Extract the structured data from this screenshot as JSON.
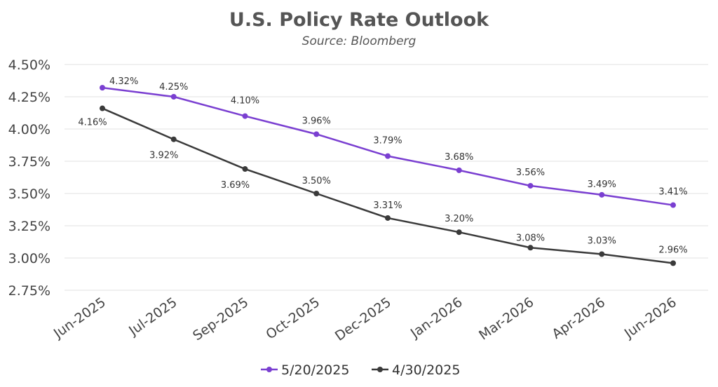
{
  "chart_data": {
    "type": "line",
    "title": "U.S. Policy Rate Outlook",
    "subtitle": "Source: Bloomberg",
    "xlabel": "",
    "ylabel": "",
    "categories": [
      "Jun-2025",
      "Jul-2025",
      "Sep-2025",
      "Oct-2025",
      "Dec-2025",
      "Jan-2026",
      "Mar-2026",
      "Apr-2026",
      "Jun-2026"
    ],
    "ylim": [
      2.75,
      4.5
    ],
    "yticks": [
      "4.50%",
      "4.25%",
      "4.00%",
      "3.75%",
      "3.50%",
      "3.25%",
      "3.00%",
      "2.75%"
    ],
    "ytick_values": [
      4.5,
      4.25,
      4.0,
      3.75,
      3.5,
      3.25,
      3.0,
      2.75
    ],
    "grid": true,
    "legend_position": "bottom",
    "series": [
      {
        "name": "5/20/2025",
        "color": "#7a3fd1",
        "values": [
          4.32,
          4.25,
          4.1,
          3.96,
          3.79,
          3.68,
          3.56,
          3.49,
          3.41
        ],
        "labels": [
          "4.32%",
          "4.25%",
          "4.10%",
          "3.96%",
          "3.79%",
          "3.68%",
          "3.56%",
          "3.49%",
          "3.41%"
        ]
      },
      {
        "name": "4/30/2025",
        "color": "#3a3a3a",
        "values": [
          4.16,
          3.92,
          3.69,
          3.5,
          3.31,
          3.2,
          3.08,
          3.03,
          2.96
        ],
        "labels": [
          "4.16%",
          "3.92%",
          "3.69%",
          "3.50%",
          "3.31%",
          "3.20%",
          "3.08%",
          "3.03%",
          "2.96%"
        ]
      }
    ]
  }
}
